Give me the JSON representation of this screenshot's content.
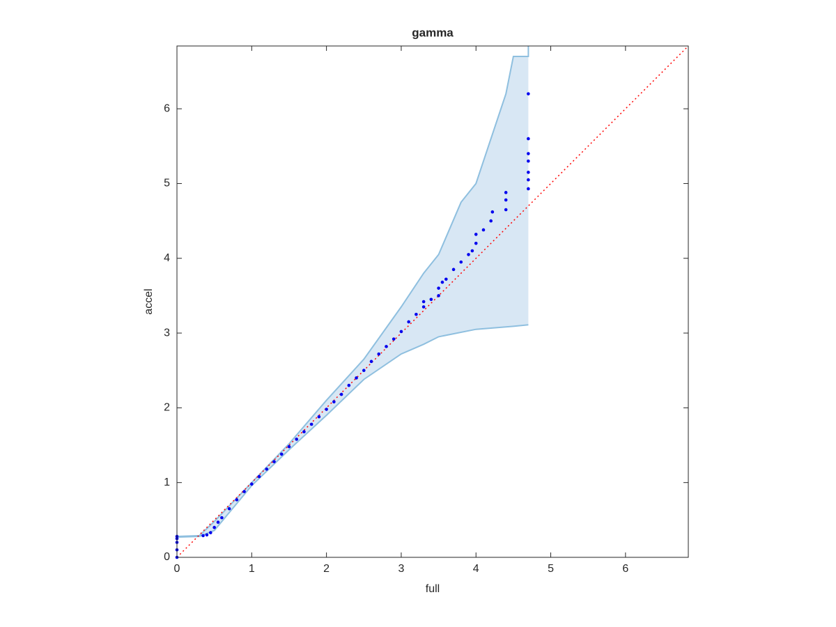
{
  "chart_data": {
    "type": "scatter",
    "title": "gamma",
    "xlabel": "full",
    "ylabel": "accel",
    "xlim": [
      0,
      6.84
    ],
    "ylim": [
      0,
      6.84
    ],
    "xticks": [
      0,
      1,
      2,
      3,
      4,
      5,
      6
    ],
    "yticks": [
      0,
      1,
      2,
      3,
      4,
      5,
      6
    ],
    "band": {
      "color": "#8ebfdf",
      "fill": "#d8e7f4",
      "upper": {
        "x": [
          0,
          0.3,
          0.5,
          1,
          1.5,
          2,
          2.5,
          3,
          3.3,
          3.5,
          3.8,
          4.0,
          4.2,
          4.4,
          4.5,
          4.7,
          4.7
        ],
        "values": [
          0.28,
          0.29,
          0.48,
          1.0,
          1.52,
          2.1,
          2.65,
          3.35,
          3.8,
          4.05,
          4.75,
          5.0,
          5.6,
          6.2,
          6.7,
          6.7,
          6.84
        ]
      },
      "lower": {
        "x": [
          0,
          0.3,
          0.5,
          1,
          1.5,
          2,
          2.5,
          3,
          3.3,
          3.5,
          4,
          4.5,
          4.7
        ],
        "values": [
          0.27,
          0.28,
          0.36,
          0.96,
          1.44,
          1.9,
          2.38,
          2.72,
          2.85,
          2.95,
          3.05,
          3.09,
          3.11
        ]
      }
    },
    "reference": {
      "x": [
        0,
        6.84
      ],
      "values": [
        0,
        6.84
      ],
      "color": "#ff0000"
    },
    "series": [
      {
        "color": "#0000ee",
        "x": [
          0,
          0,
          0,
          0,
          0,
          0.35,
          0.4,
          0.45,
          0.5,
          0.55,
          0.6,
          0.7,
          0.8,
          0.9,
          1.0,
          1.1,
          1.2,
          1.3,
          1.4,
          1.5,
          1.6,
          1.7,
          1.8,
          1.9,
          2.0,
          2.1,
          2.2,
          2.3,
          2.4,
          2.5,
          2.6,
          2.7,
          2.8,
          2.9,
          3.0,
          3.1,
          3.2,
          3.3,
          3.3,
          3.4,
          3.5,
          3.5,
          3.55,
          3.6,
          3.7,
          3.8,
          3.9,
          3.95,
          4.0,
          4.0,
          4.1,
          4.2,
          4.22,
          4.4,
          4.4,
          4.4,
          4.7,
          4.7,
          4.7,
          4.7,
          4.7,
          4.7,
          4.7
        ],
        "values": [
          0,
          0.1,
          0.2,
          0.25,
          0.28,
          0.29,
          0.3,
          0.33,
          0.4,
          0.47,
          0.53,
          0.65,
          0.77,
          0.88,
          0.98,
          1.08,
          1.18,
          1.28,
          1.38,
          1.48,
          1.58,
          1.68,
          1.78,
          1.88,
          1.98,
          2.08,
          2.18,
          2.3,
          2.4,
          2.5,
          2.62,
          2.72,
          2.82,
          2.92,
          3.02,
          3.15,
          3.25,
          3.35,
          3.42,
          3.45,
          3.5,
          3.6,
          3.68,
          3.72,
          3.85,
          3.95,
          4.05,
          4.1,
          4.2,
          4.32,
          4.38,
          4.5,
          4.62,
          4.65,
          4.78,
          4.88,
          4.93,
          5.05,
          5.15,
          5.3,
          5.4,
          5.6,
          6.2
        ]
      }
    ]
  }
}
